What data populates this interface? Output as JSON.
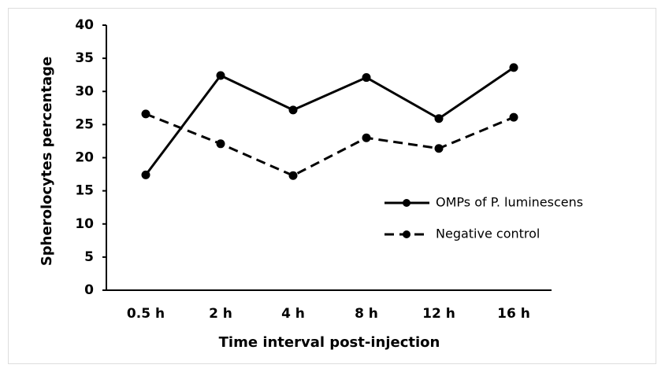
{
  "chart_data": {
    "type": "line",
    "x_label": "Time interval post-injection",
    "y_label": "Spherolocytes percentage",
    "categories": [
      "0.5 h",
      "2 h",
      "4 h",
      "8 h",
      "12 h",
      "16 h"
    ],
    "series": [
      {
        "name": "OMPs of P. luminescens",
        "color": "#000000",
        "line_style": "solid",
        "values": [
          17.4,
          32.4,
          27.2,
          32.1,
          25.9,
          33.6
        ]
      },
      {
        "name": "Negative control",
        "color": "#000000",
        "line_style": "dashed",
        "values": [
          26.6,
          22.1,
          17.3,
          23.0,
          21.4,
          26.1
        ]
      }
    ],
    "ylim": [
      0,
      40
    ],
    "yticks": [
      0,
      5,
      10,
      15,
      20,
      25,
      30,
      35,
      40
    ],
    "grid": false,
    "legend_position": "right"
  }
}
